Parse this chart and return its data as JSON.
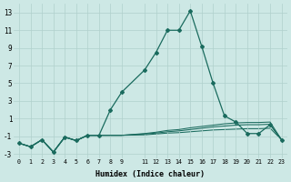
{
  "xlabel": "Humidex (Indice chaleur)",
  "xlim": [
    -0.5,
    23.5
  ],
  "ylim": [
    -3.5,
    14.0
  ],
  "yticks": [
    -3,
    -1,
    1,
    3,
    5,
    7,
    9,
    11,
    13
  ],
  "xtick_positions": [
    0,
    1,
    2,
    3,
    4,
    5,
    6,
    7,
    8,
    9,
    11,
    12,
    13,
    14,
    15,
    16,
    17,
    18,
    19,
    20,
    21,
    22,
    23
  ],
  "xtick_labels": [
    "0",
    "1",
    "2",
    "3",
    "4",
    "5",
    "6",
    "7",
    "8",
    "9",
    "11",
    "12",
    "13",
    "14",
    "15",
    "16",
    "17",
    "18",
    "19",
    "20",
    "21",
    "22",
    "23"
  ],
  "background_color": "#cde8e5",
  "grid_color": "#b0d0cc",
  "line_color": "#1a6b5e",
  "line1_x": [
    0,
    1,
    2,
    3,
    4,
    5,
    6,
    7,
    8,
    9,
    11,
    12,
    13,
    14,
    15,
    16,
    17,
    18,
    19,
    20,
    21,
    22,
    23
  ],
  "line1_y": [
    -1.8,
    -2.2,
    -1.4,
    -2.8,
    -1.1,
    -1.5,
    -0.9,
    -0.9,
    2.0,
    4.0,
    6.5,
    8.5,
    11.0,
    11.0,
    13.2,
    9.2,
    5.0,
    1.3,
    0.6,
    -0.7,
    -0.7,
    0.3,
    -1.4
  ],
  "line2_x": [
    0,
    1,
    2,
    3,
    4,
    5,
    6,
    7,
    8,
    9,
    11,
    12,
    13,
    14,
    15,
    16,
    17,
    18,
    19,
    20,
    21,
    22,
    23
  ],
  "line2_y": [
    -1.8,
    -2.2,
    -1.4,
    -2.8,
    -1.1,
    -1.5,
    -0.9,
    -0.9,
    -0.9,
    -0.9,
    -0.7,
    -0.55,
    -0.35,
    -0.25,
    -0.05,
    0.1,
    0.25,
    0.4,
    0.5,
    0.55,
    0.55,
    0.6,
    -1.4
  ],
  "line3_x": [
    0,
    1,
    2,
    3,
    4,
    5,
    6,
    7,
    8,
    9,
    11,
    12,
    13,
    14,
    15,
    16,
    17,
    18,
    19,
    20,
    21,
    22,
    23
  ],
  "line3_y": [
    -1.8,
    -2.2,
    -1.4,
    -2.8,
    -1.1,
    -1.5,
    -0.9,
    -0.9,
    -0.9,
    -0.9,
    -0.75,
    -0.65,
    -0.5,
    -0.4,
    -0.25,
    -0.1,
    0.05,
    0.15,
    0.25,
    0.3,
    0.3,
    0.35,
    -1.4
  ],
  "line4_x": [
    0,
    1,
    2,
    3,
    4,
    5,
    6,
    7,
    8,
    9,
    11,
    12,
    13,
    14,
    15,
    16,
    17,
    18,
    19,
    20,
    21,
    22,
    23
  ],
  "line4_y": [
    -1.8,
    -2.2,
    -1.4,
    -2.8,
    -1.1,
    -1.5,
    -0.9,
    -0.9,
    -0.9,
    -0.9,
    -0.85,
    -0.75,
    -0.65,
    -0.6,
    -0.5,
    -0.4,
    -0.3,
    -0.25,
    -0.2,
    -0.15,
    -0.15,
    -0.1,
    -1.4
  ]
}
